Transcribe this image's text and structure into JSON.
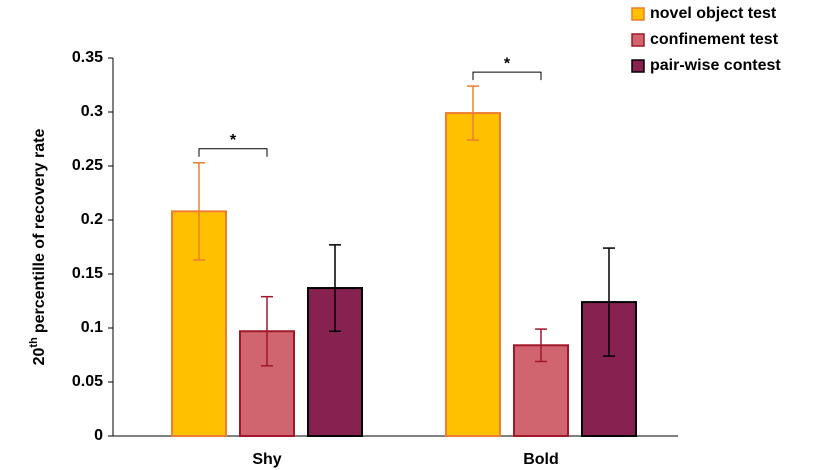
{
  "chart_data": {
    "type": "bar",
    "y_label": {
      "number": "20",
      "suffix": "th",
      "text": "percentille of recovery rate"
    },
    "categories": [
      "Shy",
      "Bold"
    ],
    "series": [
      {
        "name": "novel object test",
        "color": "#FFC000",
        "edge_color": "#ED7D31",
        "error_color": "#ED7D31",
        "values": [
          0.208,
          0.299
        ],
        "errors": [
          0.045,
          0.025
        ]
      },
      {
        "name": "confinement test",
        "color": "#D0646F",
        "edge_color": "#A0182A",
        "error_color": "#A0182A",
        "values": [
          0.097,
          0.084
        ],
        "errors": [
          0.032,
          0.015
        ]
      },
      {
        "name": "pair-wise contest",
        "color": "#87214F",
        "edge_color": "#000000",
        "error_color": "#000000",
        "values": [
          0.137,
          0.124
        ],
        "errors": [
          0.04,
          0.05
        ]
      }
    ],
    "ylim": [
      0,
      0.35
    ],
    "yticks": [
      0,
      0.05,
      0.1,
      0.15,
      0.2,
      0.25,
      0.3,
      0.35
    ],
    "annotations": [
      {
        "text": "*"
      },
      {
        "text": "*"
      }
    ],
    "legend": "top-right"
  }
}
